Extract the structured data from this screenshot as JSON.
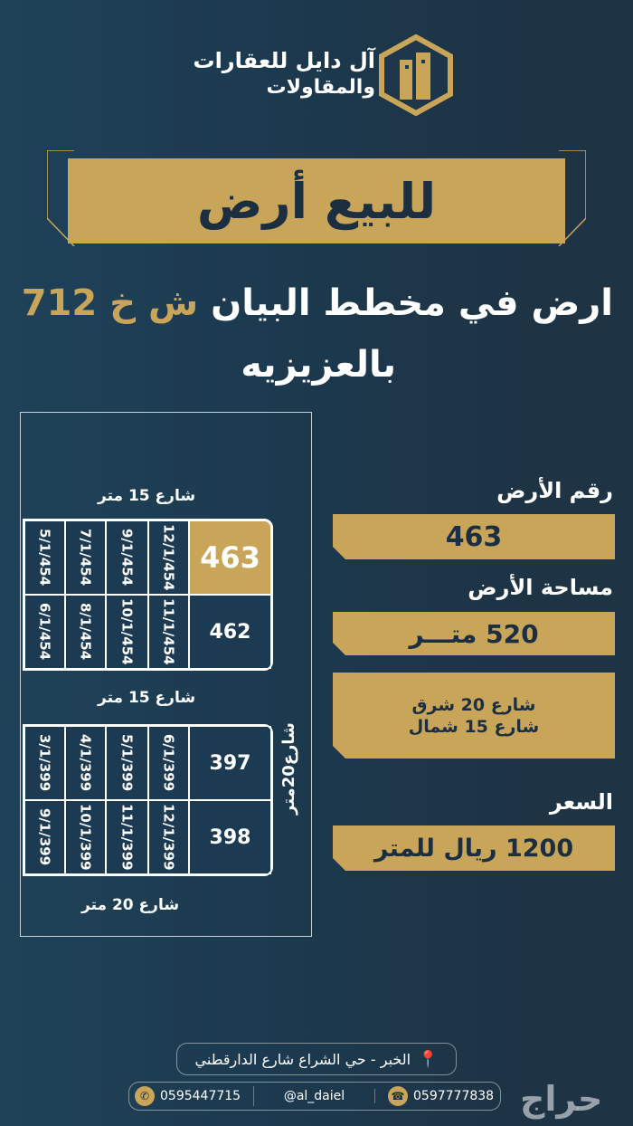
{
  "brand": {
    "name_line1": "آل دايل للعقارات",
    "name_line2": "والمقاولات"
  },
  "banner": {
    "text": "للبيع أرض"
  },
  "headline": {
    "part1": "ارض في مخطط البيان",
    "highlight": "ش خ 712",
    "line2": "بالعزيزيه"
  },
  "plan": {
    "top_street": "شارع 15 متر",
    "middle_street": "شارع 15 متر",
    "bottom_street": "شارع 20 متر",
    "side_street": "شارع20متر",
    "block1": {
      "row1": [
        "5/1/454",
        "7/1/454",
        "9/1/454",
        "12/1/454"
      ],
      "row2": [
        "6/1/454",
        "8/1/454",
        "10/1/454",
        "11/1/454"
      ],
      "plot_top": "463",
      "plot_bottom": "462"
    },
    "block2": {
      "row1": [
        "3/1/399",
        "4/1/399",
        "5/1/399",
        "6/1/399"
      ],
      "row2": [
        "9/1/399",
        "10/1/399",
        "11/1/399",
        "12/1/399"
      ],
      "plot_top": "397",
      "plot_bottom": "398"
    }
  },
  "details": {
    "plot_no_label": "رقم الأرض",
    "plot_no": "463",
    "area_label": "مساحة الأرض",
    "area": "520 متـــر",
    "street1": "شارع 20 شرق",
    "street2": "شارع 15 شمال",
    "price_label": "السعر",
    "price": "1200 ريال للمتر"
  },
  "footer": {
    "address": "الخبر - حي الشراع شارع الدارقطني",
    "whatsapp": "0595447715",
    "handle": "@al_daiel",
    "phone": "0597777838",
    "watermark": "حراج"
  },
  "colors": {
    "gold": "#c9a55a",
    "navy": "#1c3a50"
  }
}
